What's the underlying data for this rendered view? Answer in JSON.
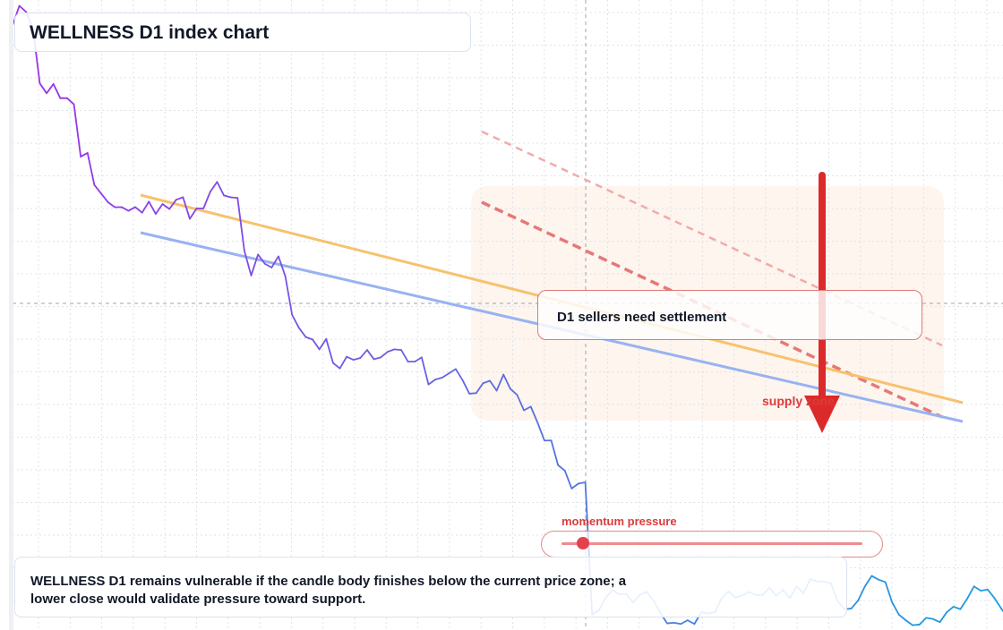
{
  "title": "WELLNESS D1 index chart",
  "callout": "D1 sellers need settlement",
  "zone_label": "supply zone",
  "momentum": {
    "label": "momentum pressure",
    "level": 0.07
  },
  "note": "WELLNESS D1 remains vulnerable if the candle body finishes below the current price zone; a lower close would validate pressure toward support.",
  "colors": {
    "price_start": "#9b30ea",
    "price_mid": "#5c6fe0",
    "price_end": "#1aa0e0",
    "trend_upper": "#f6c26f",
    "trend_lower": "#98b2f2",
    "projection_strong": "#e57878",
    "projection_faint": "#f2aaaa",
    "arrow": "#dc2a2a",
    "zone_fill": "#fdf5ee",
    "grid": "#dfe3e8",
    "crosshair": "#9ca3af"
  },
  "chart_data": {
    "type": "line",
    "title": "WELLNESS D1 index chart",
    "xlabel": "",
    "ylabel": "",
    "grid": true,
    "xlim": [
      0,
      140
    ],
    "ylim": [
      0,
      100
    ],
    "series": [
      {
        "values": [
          97.6,
          100.8,
          99.8,
          97.1,
          88.2,
          86.6,
          88.1,
          85.8,
          85.8,
          84.8,
          76.3,
          76.9,
          71.7,
          70.3,
          68.9,
          68.1,
          68.1,
          67.5,
          68.1,
          67.2,
          69.0,
          67.0,
          68.6,
          67.8,
          69.3,
          69.7,
          66.2,
          67.9,
          67.9,
          70.6,
          72.2,
          70.0,
          69.7,
          69.6,
          61.0,
          57.0,
          60.4,
          58.9,
          58.3,
          60.1,
          56.9,
          50.6,
          48.5,
          47.0,
          46.6,
          45.0,
          46.7,
          42.8,
          41.9,
          43.8,
          43.3,
          43.6,
          44.9,
          43.4,
          43.7,
          44.6,
          45.0,
          44.9,
          43.0,
          43.0,
          43.7,
          39.3,
          40.1,
          40.4,
          41.1,
          41.8,
          40.0,
          37.8,
          37.9,
          39.5,
          39.9,
          38.3,
          40.9,
          38.6,
          37.6,
          35.1,
          35.7,
          33.1,
          30.2,
          30.2,
          26.2,
          25.3,
          22.4,
          23.2,
          23.4,
          1.9,
          2.6,
          4.7,
          5.9,
          5.2,
          5.3,
          3.9,
          5.1,
          5.6,
          4.2,
          2.2,
          0.5,
          0.6,
          0.4,
          1.0,
          0.4,
          2.3,
          2.1,
          2.3,
          4.6,
          5.7,
          4.7,
          5.0,
          5.6,
          5.1,
          5.1,
          6.3,
          5.0,
          5.9,
          4.6,
          6.5,
          5.4,
          7.7,
          7.3,
          7.3,
          7.0,
          4.1,
          2.8,
          2.9,
          4.2,
          6.5,
          8.2,
          7.6,
          7.2,
          3.9,
          1.9,
          1.0,
          0.2,
          0.3,
          1.4,
          1.2,
          0.7,
          2.3,
          3.2,
          2.8,
          4.5,
          6.5,
          5.8,
          6.0,
          4.6,
          2.9,
          1.4
        ]
      }
    ]
  }
}
